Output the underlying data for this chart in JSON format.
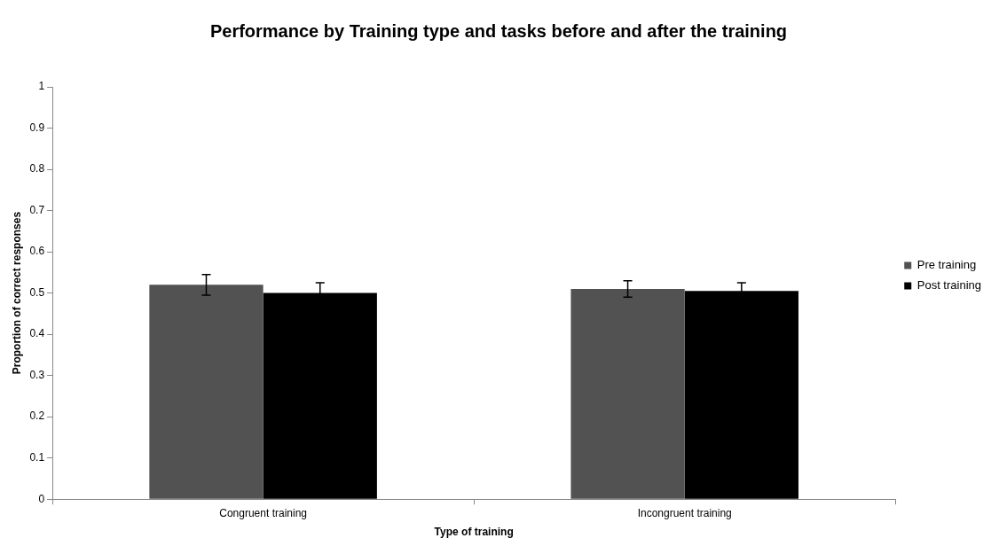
{
  "chart_data": {
    "type": "bar",
    "title": "Performance by Training type and tasks before and after the training",
    "xlabel": "Type of training",
    "ylabel": "Proportion of correct responses",
    "categories": [
      "Congruent training",
      "Incongruent training"
    ],
    "series": [
      {
        "name": "Pre training",
        "color": "#525252",
        "values": [
          0.52,
          0.51
        ],
        "errors": [
          0.025,
          0.02
        ]
      },
      {
        "name": "Post training",
        "color": "#000000",
        "values": [
          0.5,
          0.505
        ],
        "errors": [
          0.025,
          0.02
        ]
      }
    ],
    "ylim": [
      0,
      1
    ],
    "yticks": [
      0,
      0.1,
      0.2,
      0.3,
      0.4,
      0.5,
      0.6,
      0.7,
      0.8,
      0.9,
      1
    ],
    "grid": false,
    "legend": "right"
  }
}
